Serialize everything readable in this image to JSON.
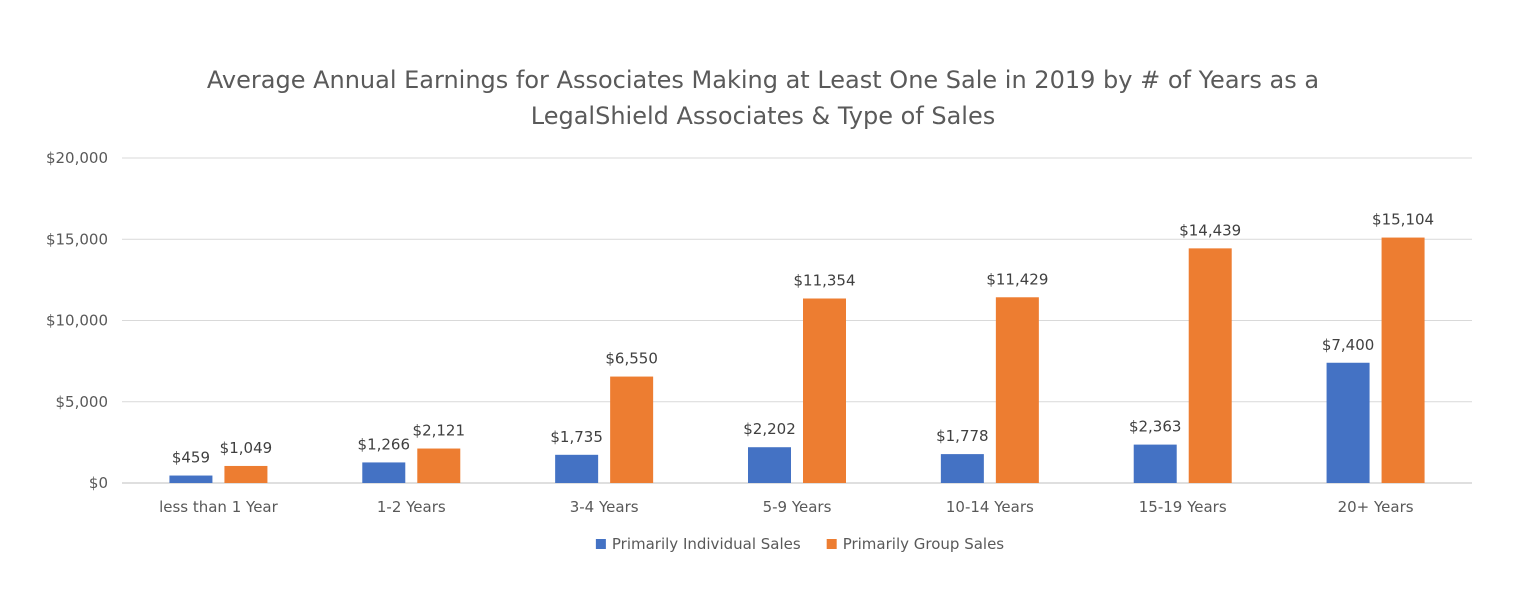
{
  "chart_data": {
    "type": "bar",
    "title": [
      "Average Annual Earnings for Associates Making at Least One Sale in 2019 by # of Years as a",
      "LegalShield Associates & Type of Sales"
    ],
    "categories": [
      "less than 1 Year",
      "1-2 Years",
      "3-4 Years",
      "5-9 Years",
      "10-14 Years",
      "15-19 Years",
      "20+ Years"
    ],
    "series": [
      {
        "name": "Primarily Individual Sales",
        "color": "#4472c4",
        "values": [
          459,
          1266,
          1735,
          2202,
          1778,
          2363,
          7400
        ],
        "labels": [
          "$459",
          "$1,266",
          "$1,735",
          "$2,202",
          "$1,778",
          "$2,363",
          "$7,400"
        ]
      },
      {
        "name": "Primarily Group Sales",
        "color": "#ed7d31",
        "values": [
          1049,
          2121,
          6550,
          11354,
          11429,
          14439,
          15104
        ],
        "labels": [
          "$1,049",
          "$2,121",
          "$6,550",
          "$11,354",
          "$11,429",
          "$14,439",
          "$15,104"
        ]
      }
    ],
    "ylim": [
      0,
      20000
    ],
    "yticks": [
      0,
      5000,
      10000,
      15000,
      20000
    ],
    "ytick_labels": [
      "$0",
      "$5,000",
      "$10,000",
      "$15,000",
      "$20,000"
    ],
    "grid": true,
    "legend_position": "bottom"
  }
}
